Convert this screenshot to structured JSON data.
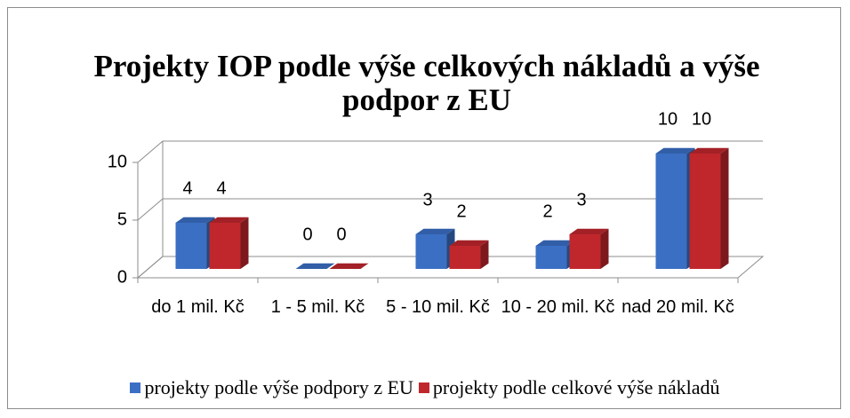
{
  "chart_data": {
    "type": "bar",
    "title": "Projekty IOP podle výše celkových nákladů a výše podpor z EU",
    "categories": [
      "do 1 mil. Kč",
      "1 - 5 mil. Kč",
      "5 - 10 mil. Kč",
      "10 - 20 mil. Kč",
      "nad 20 mil. Kč"
    ],
    "series": [
      {
        "name": "projekty podle výše podpory z EU",
        "color": "#3a6fc4",
        "values": [
          4,
          0,
          3,
          2,
          10
        ]
      },
      {
        "name": "projekty podle celkové výše nákladů",
        "color": "#c0272d",
        "values": [
          4,
          0,
          2,
          3,
          10
        ]
      }
    ],
    "ylim": [
      0,
      10
    ],
    "yticks": [
      0,
      5,
      10
    ],
    "grid": true,
    "legend": "bottom"
  }
}
